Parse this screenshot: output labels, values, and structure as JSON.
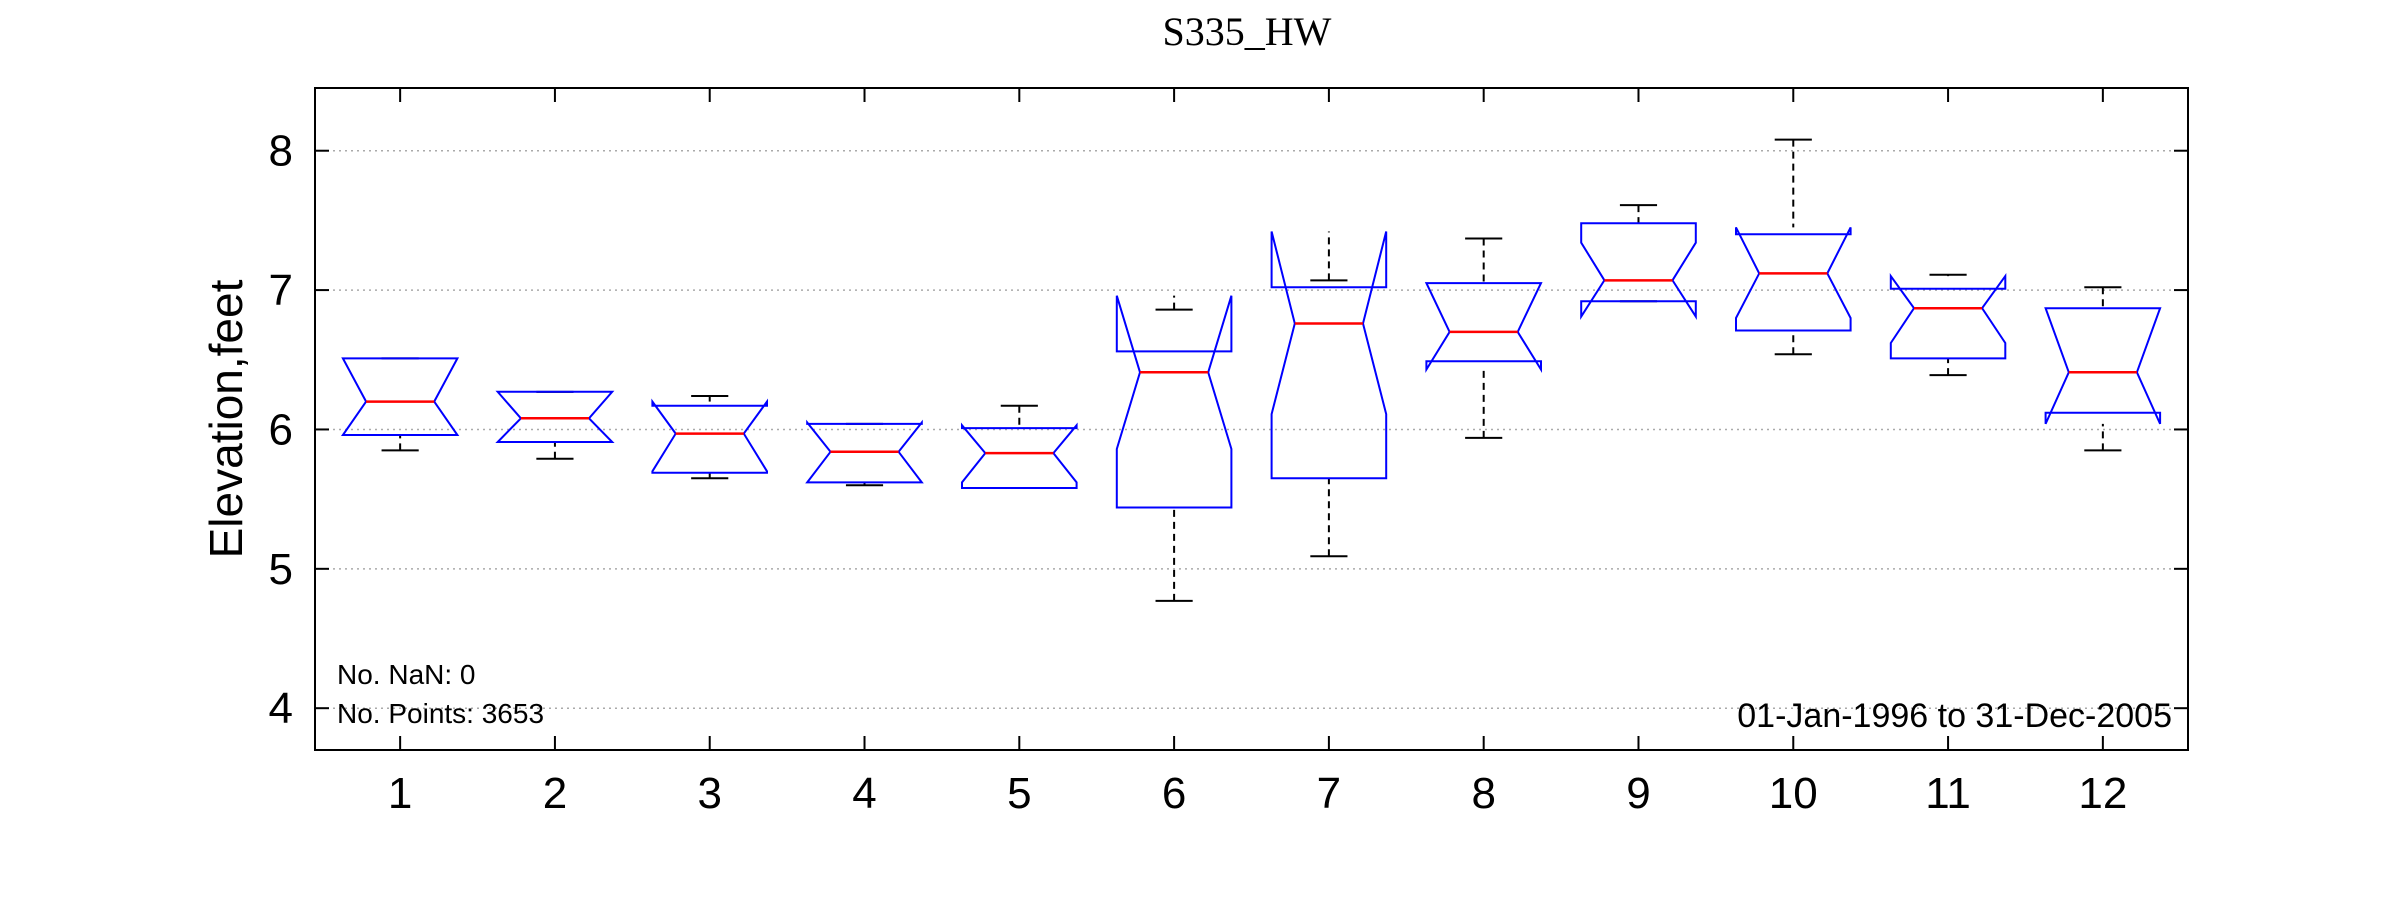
{
  "chart_data": {
    "type": "boxplot",
    "title": "S335_HW",
    "xlabel": "",
    "ylabel": "Elevation,feet",
    "ylim": [
      3.7,
      8.45
    ],
    "yticks": [
      4,
      5,
      6,
      7,
      8
    ],
    "categories": [
      "1",
      "2",
      "3",
      "4",
      "5",
      "6",
      "7",
      "8",
      "9",
      "10",
      "11",
      "12"
    ],
    "grid": "horizontal dotted",
    "notes": {
      "nan": "No. NaN: 0",
      "points": "No. Points: 3653",
      "date_range": "01-Jan-1996 to 31-Dec-2005"
    },
    "colors": {
      "box": "#0000ff",
      "median": "#ff0000",
      "whisker": "#000000",
      "grid": "#aaaaaa"
    },
    "boxes": [
      {
        "category": "1",
        "whisker_low": 5.85,
        "q1": 5.96,
        "median": 6.2,
        "q3": 6.51,
        "whisker_high": 6.51,
        "notch_low": 5.96,
        "notch_high": 6.51
      },
      {
        "category": "2",
        "whisker_low": 5.79,
        "q1": 5.91,
        "median": 6.08,
        "q3": 6.27,
        "whisker_high": 6.27,
        "notch_low": 5.91,
        "notch_high": 6.27
      },
      {
        "category": "3",
        "whisker_low": 5.65,
        "q1": 5.69,
        "median": 5.97,
        "q3": 6.17,
        "whisker_high": 6.24,
        "notch_low": 5.7,
        "notch_high": 6.2
      },
      {
        "category": "4",
        "whisker_low": 5.6,
        "q1": 5.62,
        "median": 5.84,
        "q3": 6.04,
        "whisker_high": 6.04,
        "notch_low": 5.62,
        "notch_high": 6.05
      },
      {
        "category": "5",
        "whisker_low": 5.58,
        "q1": 5.58,
        "median": 5.83,
        "q3": 6.01,
        "whisker_high": 6.17,
        "notch_low": 5.62,
        "notch_high": 6.03
      },
      {
        "category": "6",
        "whisker_low": 4.77,
        "q1": 5.44,
        "median": 6.41,
        "q3": 6.56,
        "whisker_high": 6.86,
        "notch_low": 5.86,
        "notch_high": 6.96
      },
      {
        "category": "7",
        "whisker_low": 5.09,
        "q1": 5.65,
        "median": 6.76,
        "q3": 7.02,
        "whisker_high": 7.07,
        "notch_low": 6.11,
        "notch_high": 7.42
      },
      {
        "category": "8",
        "whisker_low": 5.94,
        "q1": 6.49,
        "median": 6.7,
        "q3": 7.05,
        "whisker_high": 7.37,
        "notch_low": 6.43,
        "notch_high": 7.05
      },
      {
        "category": "9",
        "whisker_low": 6.92,
        "q1": 6.92,
        "median": 7.07,
        "q3": 7.48,
        "whisker_high": 7.61,
        "notch_low": 6.81,
        "notch_high": 7.34
      },
      {
        "category": "10",
        "whisker_low": 6.54,
        "q1": 6.71,
        "median": 7.12,
        "q3": 7.4,
        "whisker_high": 8.08,
        "notch_low": 6.8,
        "notch_high": 7.45
      },
      {
        "category": "11",
        "whisker_low": 6.39,
        "q1": 6.51,
        "median": 6.87,
        "q3": 7.01,
        "whisker_high": 7.11,
        "notch_low": 6.62,
        "notch_high": 7.1
      },
      {
        "category": "12",
        "whisker_low": 5.85,
        "q1": 6.12,
        "median": 6.41,
        "q3": 6.87,
        "whisker_high": 7.02,
        "notch_low": 6.04,
        "notch_high": 6.87
      }
    ]
  }
}
